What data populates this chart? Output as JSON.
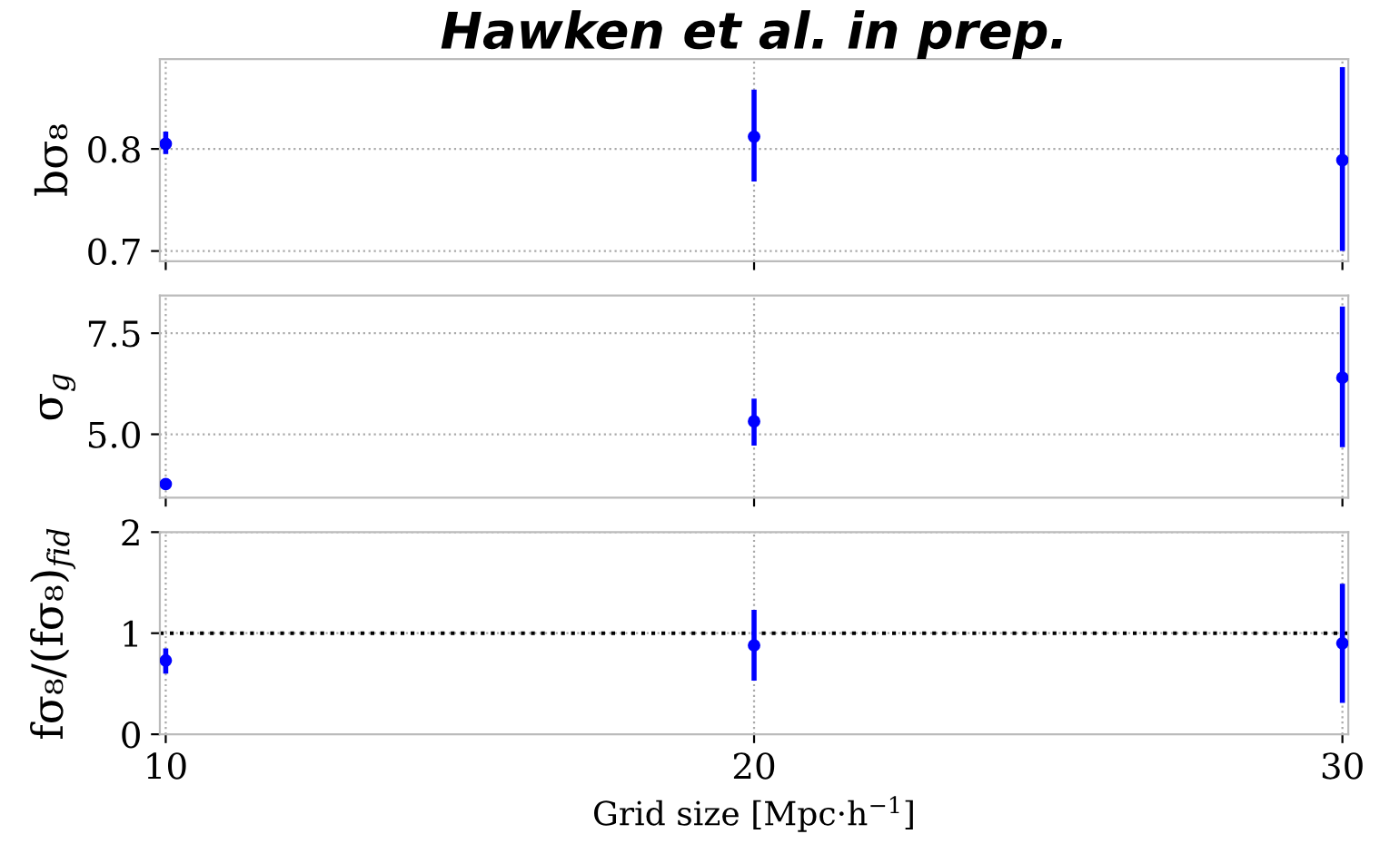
{
  "chart_data": [
    {
      "type": "scatter",
      "title": "Hawken et al. in prep.",
      "ylabel": "bσ₈",
      "x": [
        10,
        20,
        30
      ],
      "series": [
        {
          "color": "#0000ff",
          "values": [
            0.805,
            0.812,
            0.789
          ],
          "errors": [
            [
              0.795,
              0.817
            ],
            [
              0.768,
              0.858
            ],
            [
              0.7,
              0.88
            ]
          ]
        }
      ],
      "xlim": [
        9.9,
        30.1
      ],
      "xticks": [
        10,
        20,
        30
      ],
      "ylim": [
        0.69,
        0.888
      ],
      "yticks": [
        0.7,
        0.8
      ],
      "grid": true,
      "marker": "circle",
      "tick_labels": "y"
    },
    {
      "type": "scatter",
      "ylabel": "σ$_{g}$",
      "x": [
        10,
        20,
        30
      ],
      "series": [
        {
          "color": "#0000ff",
          "values": [
            3.77,
            5.32,
            6.4
          ],
          "errors": [
            [
              3.67,
              3.87
            ],
            [
              4.72,
              5.88
            ],
            [
              4.68,
              8.16
            ]
          ]
        }
      ],
      "xlim": [
        9.9,
        30.1
      ],
      "xticks": [
        10,
        20,
        30
      ],
      "ylim": [
        3.43,
        8.43
      ],
      "yticks": [
        {
          "value": 5,
          "label": "5.0"
        },
        7.5
      ],
      "grid": true,
      "marker": "circle",
      "tick_labels": "y"
    },
    {
      "type": "scatter",
      "ylabel": "fσ₈/(fσ₈)$_{fid}$",
      "xlabel": "Grid size [Mpc·h$^{−1}$]",
      "x": [
        10,
        20,
        30
      ],
      "series": [
        {
          "color": "#0000ff",
          "values": [
            0.73,
            0.88,
            0.9
          ],
          "errors": [
            [
              0.6,
              0.85
            ],
            [
              0.53,
              1.23
            ],
            [
              0.31,
              1.49
            ]
          ]
        }
      ],
      "xlim": [
        9.9,
        30.1
      ],
      "xticks": [
        10,
        20,
        30
      ],
      "ylim": [
        0,
        2
      ],
      "yticks": [
        0,
        1,
        2
      ],
      "grid": true,
      "marker": "circle",
      "ref_lines": [
        {
          "axis": "y",
          "value": 1,
          "color": "#000000",
          "line_style": "dotted"
        }
      ]
    }
  ]
}
